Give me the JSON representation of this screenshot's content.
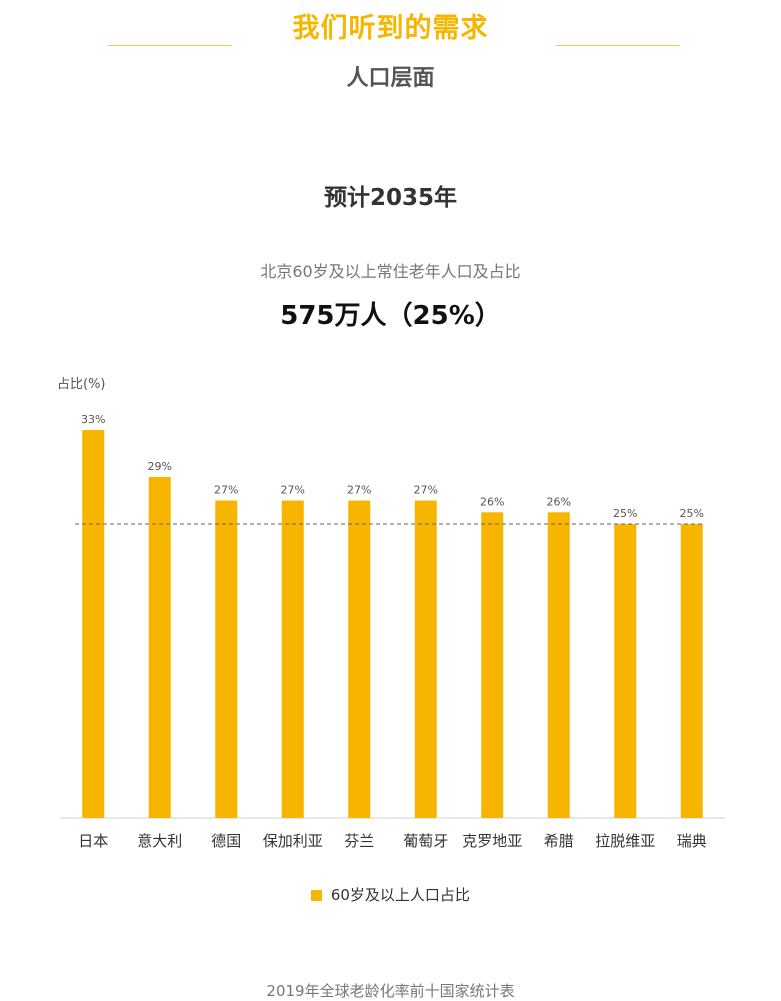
{
  "header": {
    "title": "我们听到的需求",
    "subtitle": "人口层面"
  },
  "forecast": {
    "year_label": "预计2035年",
    "caption": "北京60岁及以上常住老年人口及占比",
    "value": "575万人（25%）"
  },
  "colors": {
    "accent": "#f7b500",
    "line": "#f2c64a"
  },
  "chart_data": {
    "type": "bar",
    "ylabel": "占比(%)",
    "categories": [
      "日本",
      "意大利",
      "德国",
      "保加利亚",
      "芬兰",
      "葡萄牙",
      "克罗地亚",
      "希腊",
      "拉脱维亚",
      "瑞典"
    ],
    "values": [
      33,
      29,
      27,
      27,
      27,
      27,
      26,
      26,
      25,
      25
    ],
    "data_labels": [
      "33%",
      "29%",
      "27%",
      "27%",
      "27%",
      "27%",
      "26%",
      "26%",
      "25%",
      "25%"
    ],
    "series": [
      {
        "name": "60岁及以上人口占比",
        "values": [
          33,
          29,
          27,
          27,
          27,
          27,
          26,
          26,
          25,
          25
        ]
      }
    ],
    "reference_line": 25,
    "ylim": [
      0,
      33
    ],
    "legend": "bottom",
    "grid": false
  },
  "source": "2019年全球老龄化率前十国家统计表"
}
